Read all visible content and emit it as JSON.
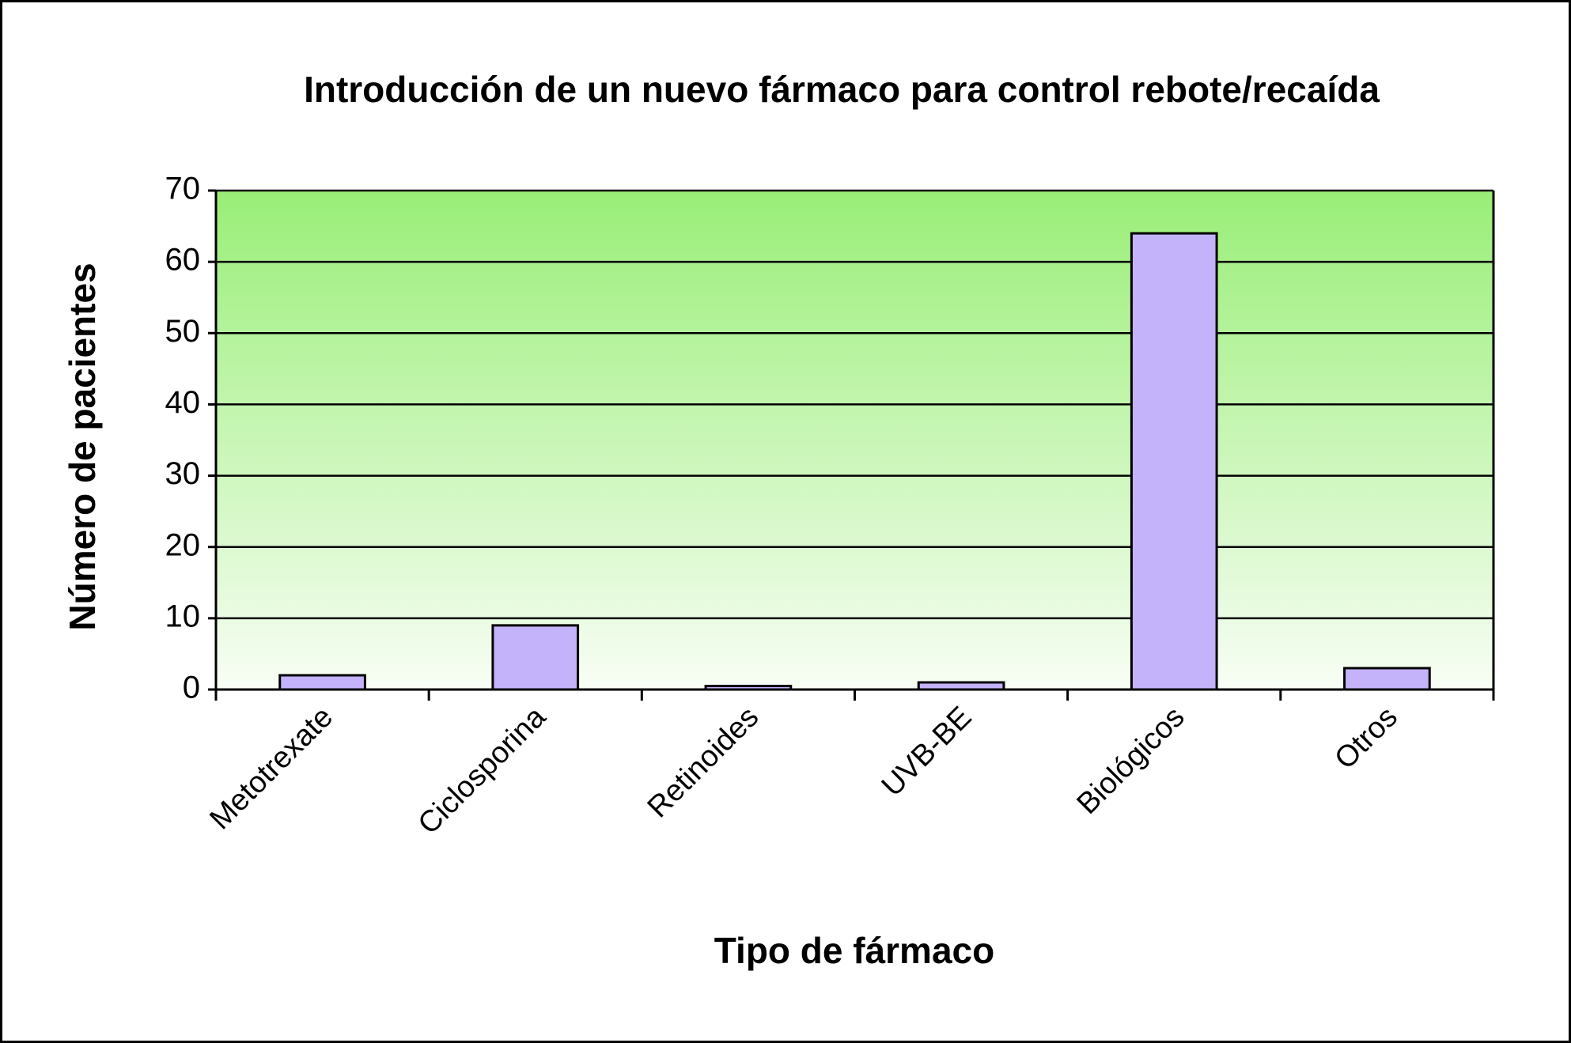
{
  "chart_data": {
    "type": "bar",
    "title": "Introducción de un nuevo fármaco para control rebote/recaída",
    "x_label": "Tipo de fármaco",
    "y_label": "Número de pacientes",
    "categories": [
      "Metotrexate",
      "Ciclosporina",
      "Retinoides",
      "UVB-BE",
      "Biológicos",
      "Otros"
    ],
    "values": [
      2,
      9,
      0.5,
      1,
      64,
      3
    ],
    "color": "#c4b3fa",
    "ylim": [
      0,
      70
    ],
    "yticks": [
      0,
      10,
      20,
      30,
      40,
      50,
      60,
      70
    ],
    "grid": true
  }
}
